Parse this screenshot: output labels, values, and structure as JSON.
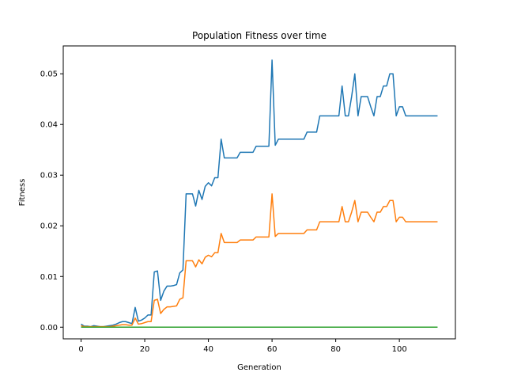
{
  "chart_data": {
    "type": "line",
    "title": "Population Fitness over time",
    "xlabel": "Generation",
    "ylabel": "Fitness",
    "xlim": [
      -5.6,
      117.6
    ],
    "ylim": [
      -0.0023,
      0.0555
    ],
    "xticks": [
      0,
      20,
      40,
      60,
      80,
      100
    ],
    "yticks": [
      0.0,
      0.01,
      0.02,
      0.03,
      0.04,
      0.05
    ],
    "ytick_labels": [
      "0.00",
      "0.01",
      "0.02",
      "0.03",
      "0.04",
      "0.05"
    ],
    "grid": false,
    "legend": "none",
    "series": [
      {
        "color": "#1f77b4",
        "points": [
          [
            0,
            0.0006
          ],
          [
            1,
            0.0002
          ],
          [
            2,
            0.0002
          ],
          [
            3,
            0.0001
          ],
          [
            4,
            0.0003
          ],
          [
            5,
            0.0002
          ],
          [
            6,
            0.0001
          ],
          [
            7,
            0.0001
          ],
          [
            8,
            0.0002
          ],
          [
            9,
            0.0003
          ],
          [
            10,
            0.0004
          ],
          [
            11,
            0.0006
          ],
          [
            12,
            0.0009
          ],
          [
            13,
            0.0011
          ],
          [
            14,
            0.0011
          ],
          [
            15,
            0.0009
          ],
          [
            16,
            0.0007
          ],
          [
            17,
            0.0039
          ],
          [
            18,
            0.0012
          ],
          [
            19,
            0.0014
          ],
          [
            20,
            0.0018
          ],
          [
            21,
            0.0024
          ],
          [
            22,
            0.0024
          ],
          [
            23,
            0.0109
          ],
          [
            24,
            0.0111
          ],
          [
            25,
            0.0053
          ],
          [
            26,
            0.0071
          ],
          [
            27,
            0.0081
          ],
          [
            28,
            0.0081
          ],
          [
            29,
            0.0082
          ],
          [
            30,
            0.0084
          ],
          [
            31,
            0.0107
          ],
          [
            32,
            0.0113
          ],
          [
            33,
            0.0263
          ],
          [
            34,
            0.0263
          ],
          [
            35,
            0.0263
          ],
          [
            36,
            0.0239
          ],
          [
            37,
            0.027
          ],
          [
            38,
            0.0252
          ],
          [
            39,
            0.0278
          ],
          [
            40,
            0.0285
          ],
          [
            41,
            0.0279
          ],
          [
            42,
            0.0295
          ],
          [
            43,
            0.0295
          ],
          [
            44,
            0.0371
          ],
          [
            45,
            0.0334
          ],
          [
            46,
            0.0334
          ],
          [
            47,
            0.0334
          ],
          [
            48,
            0.0334
          ],
          [
            49,
            0.0334
          ],
          [
            50,
            0.0345
          ],
          [
            51,
            0.0345
          ],
          [
            52,
            0.0345
          ],
          [
            53,
            0.0345
          ],
          [
            54,
            0.0345
          ],
          [
            55,
            0.0357
          ],
          [
            56,
            0.0357
          ],
          [
            57,
            0.0357
          ],
          [
            58,
            0.0357
          ],
          [
            59,
            0.0357
          ],
          [
            60,
            0.0527
          ],
          [
            61,
            0.0359
          ],
          [
            62,
            0.0371
          ],
          [
            63,
            0.0371
          ],
          [
            64,
            0.0371
          ],
          [
            65,
            0.0371
          ],
          [
            66,
            0.0371
          ],
          [
            67,
            0.0371
          ],
          [
            68,
            0.0371
          ],
          [
            69,
            0.0371
          ],
          [
            70,
            0.0371
          ],
          [
            71,
            0.0385
          ],
          [
            72,
            0.0385
          ],
          [
            73,
            0.0385
          ],
          [
            74,
            0.0385
          ],
          [
            75,
            0.0417
          ],
          [
            76,
            0.0417
          ],
          [
            77,
            0.0417
          ],
          [
            78,
            0.0417
          ],
          [
            79,
            0.0417
          ],
          [
            80,
            0.0417
          ],
          [
            81,
            0.0417
          ],
          [
            82,
            0.0476
          ],
          [
            83,
            0.0417
          ],
          [
            84,
            0.0417
          ],
          [
            85,
            0.0455
          ],
          [
            86,
            0.05
          ],
          [
            87,
            0.0417
          ],
          [
            88,
            0.0455
          ],
          [
            89,
            0.0455
          ],
          [
            90,
            0.0455
          ],
          [
            91,
            0.0435
          ],
          [
            92,
            0.0417
          ],
          [
            93,
            0.0455
          ],
          [
            94,
            0.0455
          ],
          [
            95,
            0.0476
          ],
          [
            96,
            0.0476
          ],
          [
            97,
            0.05
          ],
          [
            98,
            0.05
          ],
          [
            99,
            0.0417
          ],
          [
            100,
            0.0435
          ],
          [
            101,
            0.0435
          ],
          [
            102,
            0.0417
          ],
          [
            103,
            0.0417
          ],
          [
            104,
            0.0417
          ],
          [
            105,
            0.0417
          ],
          [
            106,
            0.0417
          ],
          [
            107,
            0.0417
          ],
          [
            108,
            0.0417
          ],
          [
            109,
            0.0417
          ],
          [
            110,
            0.0417
          ],
          [
            111,
            0.0417
          ],
          [
            112,
            0.0417
          ]
        ]
      },
      {
        "color": "#ff7f0e",
        "points": [
          [
            0,
            0.0003
          ],
          [
            1,
            0.0001
          ],
          [
            2,
            0.0001
          ],
          [
            3,
            0.0001
          ],
          [
            4,
            0.0001
          ],
          [
            5,
            0.0001
          ],
          [
            6,
            0.0001
          ],
          [
            7,
            0.0001
          ],
          [
            8,
            0.0001
          ],
          [
            9,
            0.0001
          ],
          [
            10,
            0.0002
          ],
          [
            11,
            0.0003
          ],
          [
            12,
            0.0004
          ],
          [
            13,
            0.0005
          ],
          [
            14,
            0.0005
          ],
          [
            15,
            0.0004
          ],
          [
            16,
            0.0004
          ],
          [
            17,
            0.0018
          ],
          [
            18,
            0.0006
          ],
          [
            19,
            0.0007
          ],
          [
            20,
            0.0009
          ],
          [
            21,
            0.0011
          ],
          [
            22,
            0.0011
          ],
          [
            23,
            0.0053
          ],
          [
            24,
            0.0055
          ],
          [
            25,
            0.0027
          ],
          [
            26,
            0.0035
          ],
          [
            27,
            0.004
          ],
          [
            28,
            0.004
          ],
          [
            29,
            0.0041
          ],
          [
            30,
            0.0042
          ],
          [
            31,
            0.0055
          ],
          [
            32,
            0.0058
          ],
          [
            33,
            0.0131
          ],
          [
            34,
            0.0131
          ],
          [
            35,
            0.0131
          ],
          [
            36,
            0.0119
          ],
          [
            37,
            0.0133
          ],
          [
            38,
            0.0125
          ],
          [
            39,
            0.0138
          ],
          [
            40,
            0.0142
          ],
          [
            41,
            0.0139
          ],
          [
            42,
            0.0147
          ],
          [
            43,
            0.0147
          ],
          [
            44,
            0.0185
          ],
          [
            45,
            0.0167
          ],
          [
            46,
            0.0167
          ],
          [
            47,
            0.0167
          ],
          [
            48,
            0.0167
          ],
          [
            49,
            0.0167
          ],
          [
            50,
            0.0172
          ],
          [
            51,
            0.0172
          ],
          [
            52,
            0.0172
          ],
          [
            53,
            0.0172
          ],
          [
            54,
            0.0172
          ],
          [
            55,
            0.0178
          ],
          [
            56,
            0.0178
          ],
          [
            57,
            0.0178
          ],
          [
            58,
            0.0178
          ],
          [
            59,
            0.0178
          ],
          [
            60,
            0.0263
          ],
          [
            61,
            0.0179
          ],
          [
            62,
            0.0185
          ],
          [
            63,
            0.0185
          ],
          [
            64,
            0.0185
          ],
          [
            65,
            0.0185
          ],
          [
            66,
            0.0185
          ],
          [
            67,
            0.0185
          ],
          [
            68,
            0.0185
          ],
          [
            69,
            0.0185
          ],
          [
            70,
            0.0185
          ],
          [
            71,
            0.0192
          ],
          [
            72,
            0.0192
          ],
          [
            73,
            0.0192
          ],
          [
            74,
            0.0192
          ],
          [
            75,
            0.0208
          ],
          [
            76,
            0.0208
          ],
          [
            77,
            0.0208
          ],
          [
            78,
            0.0208
          ],
          [
            79,
            0.0208
          ],
          [
            80,
            0.0208
          ],
          [
            81,
            0.0208
          ],
          [
            82,
            0.0238
          ],
          [
            83,
            0.0208
          ],
          [
            84,
            0.0208
          ],
          [
            85,
            0.0227
          ],
          [
            86,
            0.025
          ],
          [
            87,
            0.0208
          ],
          [
            88,
            0.0227
          ],
          [
            89,
            0.0227
          ],
          [
            90,
            0.0227
          ],
          [
            91,
            0.0217
          ],
          [
            92,
            0.0208
          ],
          [
            93,
            0.0227
          ],
          [
            94,
            0.0227
          ],
          [
            95,
            0.0238
          ],
          [
            96,
            0.0238
          ],
          [
            97,
            0.025
          ],
          [
            98,
            0.025
          ],
          [
            99,
            0.0208
          ],
          [
            100,
            0.0217
          ],
          [
            101,
            0.0217
          ],
          [
            102,
            0.0208
          ],
          [
            103,
            0.0208
          ],
          [
            104,
            0.0208
          ],
          [
            105,
            0.0208
          ],
          [
            106,
            0.0208
          ],
          [
            107,
            0.0208
          ],
          [
            108,
            0.0208
          ],
          [
            109,
            0.0208
          ],
          [
            110,
            0.0208
          ],
          [
            111,
            0.0208
          ],
          [
            112,
            0.0208
          ]
        ]
      },
      {
        "color": "#2ca02c",
        "points": [
          [
            0,
            0.0
          ],
          [
            112,
            0.0
          ]
        ]
      }
    ]
  }
}
